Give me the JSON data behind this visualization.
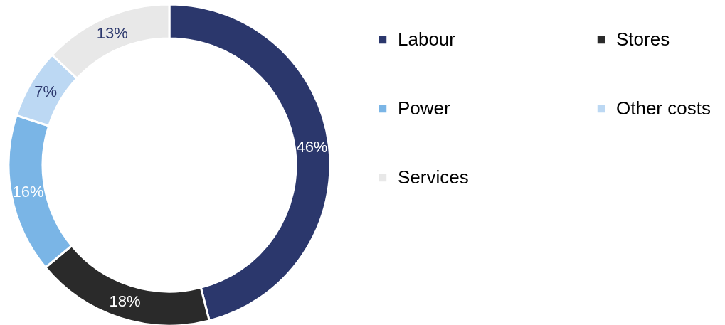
{
  "chart_data": {
    "type": "donut",
    "categories": [
      "Labour",
      "Stores",
      "Power",
      "Other costs",
      "Services"
    ],
    "values": [
      46,
      18,
      16,
      7,
      13
    ],
    "colors": [
      "#2b376c",
      "#2a2a2a",
      "#7ab5e6",
      "#bcd8f3",
      "#e8e8e8"
    ],
    "value_labels": [
      "46%",
      "18%",
      "16%",
      "7%",
      "13%"
    ],
    "legend": "right"
  }
}
